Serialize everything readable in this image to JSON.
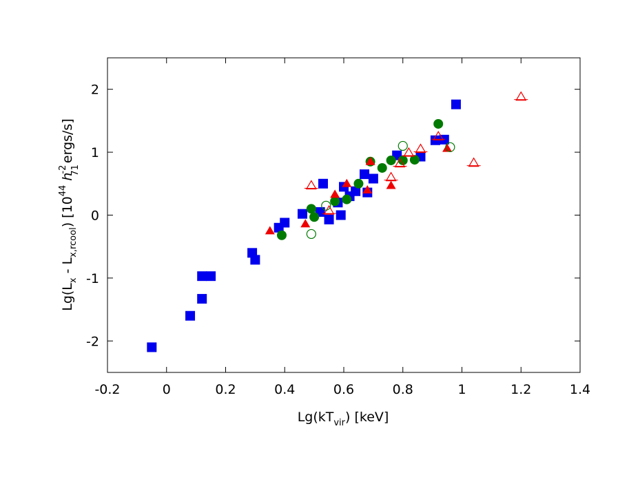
{
  "chart_data": {
    "type": "scatter",
    "xlabel": {
      "main": "Lg(kT",
      "sub": "vir",
      "tail": ") [keV]"
    },
    "ylabel": {
      "p1": "Lg(L",
      "s1": "x",
      "p2": " - L",
      "s2": "x,rcool",
      "p3": ") [10",
      "sup1": "44",
      "p4": " h",
      "sup2": "-2",
      "s3": "71",
      "p5": "ergs/s]"
    },
    "xlim": [
      -0.2,
      1.4
    ],
    "ylim": [
      -2.5,
      2.5
    ],
    "xticks": [
      "-0.2",
      "0",
      "0.2",
      "0.4",
      "0.6",
      "0.8",
      "1",
      "1.2",
      "1.4"
    ],
    "yticks": [
      "-2",
      "-1",
      "0",
      "1",
      "2"
    ],
    "colors": {
      "blue": "#0000ee",
      "green": "#007a00",
      "red": "#ee0000"
    },
    "series": [
      {
        "marker": "filled-square",
        "color": "blue",
        "points": [
          [
            -0.05,
            -2.1
          ],
          [
            0.08,
            -1.6
          ],
          [
            0.12,
            -1.33
          ],
          [
            0.12,
            -0.97
          ],
          [
            0.15,
            -0.97
          ],
          [
            0.29,
            -0.6
          ],
          [
            0.3,
            -0.71
          ],
          [
            0.38,
            -0.2
          ],
          [
            0.4,
            -0.12
          ],
          [
            0.46,
            0.02
          ],
          [
            0.52,
            0.05
          ],
          [
            0.53,
            0.5
          ],
          [
            0.55,
            -0.07
          ],
          [
            0.58,
            0.2
          ],
          [
            0.59,
            0.0
          ],
          [
            0.6,
            0.45
          ],
          [
            0.62,
            0.3
          ],
          [
            0.64,
            0.38
          ],
          [
            0.67,
            0.65
          ],
          [
            0.68,
            0.36
          ],
          [
            0.7,
            0.58
          ],
          [
            0.78,
            0.95
          ],
          [
            0.86,
            0.93
          ],
          [
            0.91,
            1.19
          ],
          [
            0.94,
            1.2
          ],
          [
            0.98,
            1.76
          ]
        ]
      },
      {
        "marker": "filled-circle",
        "color": "green",
        "points": [
          [
            0.39,
            -0.32
          ],
          [
            0.49,
            0.1
          ],
          [
            0.5,
            -0.03
          ],
          [
            0.57,
            0.22
          ],
          [
            0.61,
            0.25
          ],
          [
            0.65,
            0.5
          ],
          [
            0.69,
            0.85
          ],
          [
            0.73,
            0.75
          ],
          [
            0.76,
            0.87
          ],
          [
            0.8,
            0.87
          ],
          [
            0.84,
            0.88
          ],
          [
            0.92,
            1.45
          ]
        ]
      },
      {
        "marker": "filled-triangle",
        "color": "red",
        "points": [
          [
            0.35,
            -0.25
          ],
          [
            0.47,
            -0.14
          ],
          [
            0.57,
            0.33
          ],
          [
            0.61,
            0.5
          ],
          [
            0.68,
            0.4
          ],
          [
            0.69,
            0.85
          ],
          [
            0.76,
            0.47
          ],
          [
            0.95,
            1.06
          ]
        ]
      },
      {
        "marker": "open-triangle",
        "color": "red",
        "points": [
          [
            0.49,
            0.47
          ],
          [
            0.55,
            0.07
          ],
          [
            0.76,
            0.6
          ],
          [
            0.79,
            0.82
          ],
          [
            0.82,
            0.99
          ],
          [
            0.86,
            1.05
          ],
          [
            0.92,
            1.25
          ],
          [
            1.04,
            0.83
          ],
          [
            1.2,
            1.88
          ]
        ]
      },
      {
        "marker": "open-circle",
        "color": "green",
        "points": [
          [
            0.49,
            -0.3
          ],
          [
            0.54,
            0.15
          ],
          [
            0.8,
            1.1
          ],
          [
            0.96,
            1.08
          ]
        ]
      }
    ]
  }
}
